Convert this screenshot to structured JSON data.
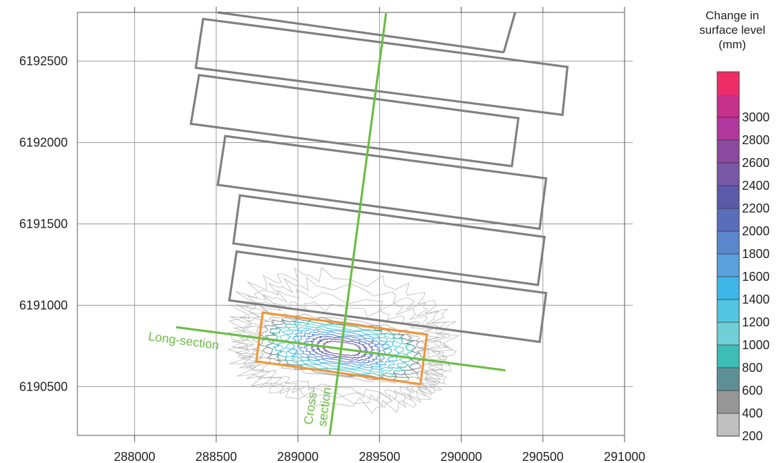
{
  "chart_data": {
    "type": "contour-map",
    "xlim": [
      287650,
      291000
    ],
    "ylim": [
      6190200,
      6192800
    ],
    "x_ticks": [
      288000,
      288500,
      289000,
      289500,
      290000,
      290500,
      291000
    ],
    "x_tick_labels": [
      "288000",
      "288500",
      "289000",
      "289500",
      "290000",
      "290500",
      "291000"
    ],
    "y_ticks": [
      6190500,
      6191000,
      6191500,
      6192000,
      6192500
    ],
    "y_tick_labels": [
      "6190500",
      "6191000",
      "6191500",
      "6192000",
      "6192500"
    ],
    "grid": true,
    "colorbar": {
      "title": [
        "Change in",
        "surface level",
        "(mm)"
      ],
      "levels": [
        200,
        400,
        600,
        800,
        1000,
        1200,
        1400,
        1600,
        1800,
        2000,
        2200,
        2400,
        2600,
        2800,
        3000,
        3200
      ],
      "tick_labels": [
        "200",
        "400",
        "600",
        "800",
        "1000",
        "1200",
        "1400",
        "1600",
        "1800",
        "2000",
        "2200",
        "2400",
        "2600",
        "2800",
        "3000"
      ],
      "colors": [
        "#c0c0c0",
        "#969696",
        "#5f8f96",
        "#3dbdb5",
        "#6ed0d6",
        "#52c6e0",
        "#3fb6e8",
        "#5aa0dc",
        "#5b86cc",
        "#5a6dba",
        "#5a5aa8",
        "#7a58a8",
        "#8c4a9f",
        "#b0379c",
        "#c4308a",
        "#ee2d67"
      ]
    },
    "panels": [
      [
        [
          288510,
          6192800
        ],
        [
          290260,
          6192555
        ]
      ],
      [
        [
          288420,
          6192760
        ],
        [
          290650,
          6192465
        ],
        [
          290620,
          6192170
        ],
        [
          288375,
          6192460
        ]
      ],
      [
        [
          288395,
          6192415
        ],
        [
          290350,
          6192150
        ],
        [
          290310,
          6191855
        ],
        [
          288345,
          6192115
        ]
      ],
      [
        [
          288555,
          6192040
        ],
        [
          290520,
          6191780
        ],
        [
          290480,
          6191470
        ],
        [
          288510,
          6191740
        ]
      ],
      [
        [
          288645,
          6191675
        ],
        [
          290510,
          6191420
        ],
        [
          290470,
          6191125
        ],
        [
          288605,
          6191380
        ]
      ],
      [
        [
          288625,
          6191330
        ],
        [
          290520,
          6191075
        ],
        [
          290480,
          6190775
        ],
        [
          288580,
          6191030
        ]
      ]
    ],
    "panel_edge_top": [
      [
        290260,
        6192555
      ],
      [
        290330,
        6192800
      ]
    ],
    "mining_block": [
      [
        288785,
        6190955
      ],
      [
        289790,
        6190820
      ],
      [
        289750,
        6190515
      ],
      [
        288745,
        6190655
      ]
    ],
    "long_section": {
      "label": "Long-section",
      "points": [
        [
          288255,
          6190865
        ],
        [
          290270,
          6190600
        ]
      ]
    },
    "cross_section": {
      "label": [
        "Cross-",
        "section"
      ],
      "points": [
        [
          289540,
          6192795
        ],
        [
          289195,
          6190205
        ]
      ]
    },
    "subsidence_trough": {
      "center": [
        289270,
        6190735
      ],
      "length_m": 1000,
      "width_m": 260,
      "rotation_deg": -7.5
    }
  }
}
